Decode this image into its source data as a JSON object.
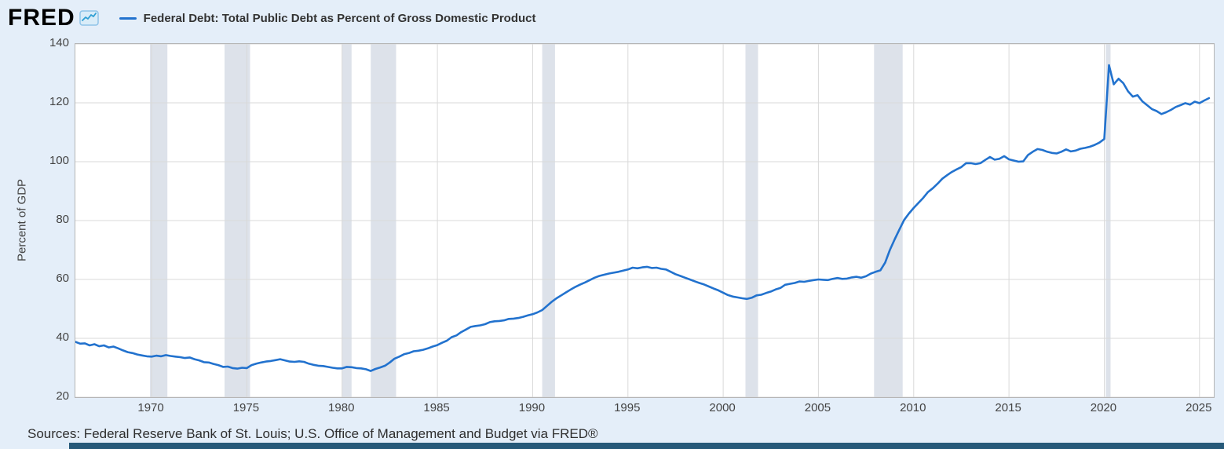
{
  "header": {
    "logo": "FRED",
    "series_title": "Federal Debt: Total Public Debt as Percent of Gross Domestic Product"
  },
  "footer": {
    "sources": "Sources: Federal Reserve Bank of St. Louis; U.S. Office of Management and Budget via FRED®"
  },
  "colors": {
    "line": "#2272ce",
    "background": "#e4eef9",
    "plot_background": "#ffffff",
    "gridline": "#d9d9d9",
    "recession_band": "#dde2ea",
    "bottom_bar": "#265979",
    "logo_icon_fill": "#d9ecf8",
    "logo_icon_stroke": "#8fc3e8",
    "logo_icon_line": "#2e9fd4"
  },
  "chart_data": {
    "type": "line",
    "title": "Federal Debt: Total Public Debt as Percent of Gross Domestic Product",
    "ylabel": "Percent of GDP",
    "xlabel": "",
    "legend_position": "top",
    "grid": true,
    "xlim": [
      1966,
      2025.75
    ],
    "ylim": [
      20,
      140
    ],
    "y_ticks": [
      20,
      40,
      60,
      80,
      100,
      120,
      140
    ],
    "x_ticks": [
      1970,
      1975,
      1980,
      1985,
      1990,
      1995,
      2000,
      2005,
      2010,
      2015,
      2020,
      2025
    ],
    "recessions": [
      [
        1969.92,
        1970.83
      ],
      [
        1973.83,
        1975.17
      ],
      [
        1980.0,
        1980.5
      ],
      [
        1981.5,
        1982.83
      ],
      [
        1990.5,
        1991.17
      ],
      [
        2001.17,
        2001.83
      ],
      [
        2007.92,
        2009.42
      ],
      [
        2020.08,
        2020.33
      ]
    ],
    "x_start": 1966.0,
    "points_per_year": 4,
    "values": [
      38.8,
      38.2,
      38.3,
      37.6,
      38.0,
      37.3,
      37.6,
      36.9,
      37.2,
      36.6,
      35.9,
      35.3,
      35.0,
      34.5,
      34.2,
      33.9,
      33.8,
      34.1,
      33.9,
      34.3,
      34.0,
      33.8,
      33.6,
      33.3,
      33.5,
      32.9,
      32.5,
      31.9,
      31.8,
      31.3,
      30.9,
      30.3,
      30.4,
      29.9,
      29.7,
      30.0,
      29.9,
      30.9,
      31.4,
      31.8,
      32.1,
      32.3,
      32.6,
      32.9,
      32.5,
      32.1,
      32.0,
      32.2,
      32.0,
      31.4,
      31.0,
      30.7,
      30.6,
      30.3,
      30.0,
      29.8,
      29.8,
      30.3,
      30.2,
      29.9,
      29.8,
      29.5,
      28.9,
      29.6,
      30.1,
      30.7,
      31.8,
      33.1,
      33.8,
      34.6,
      35.0,
      35.6,
      35.8,
      36.1,
      36.6,
      37.2,
      37.7,
      38.5,
      39.2,
      40.4,
      41.0,
      42.1,
      43.0,
      43.9,
      44.2,
      44.4,
      44.8,
      45.5,
      45.8,
      45.9,
      46.1,
      46.6,
      46.7,
      46.9,
      47.3,
      47.8,
      48.2,
      48.8,
      49.6,
      51.0,
      52.4,
      53.6,
      54.6,
      55.6,
      56.6,
      57.5,
      58.3,
      59.0,
      59.8,
      60.6,
      61.2,
      61.6,
      62.0,
      62.3,
      62.6,
      63.0,
      63.4,
      64.0,
      63.8,
      64.1,
      64.3,
      63.9,
      64.0,
      63.6,
      63.4,
      62.6,
      61.8,
      61.2,
      60.6,
      60.0,
      59.4,
      58.8,
      58.3,
      57.6,
      56.9,
      56.3,
      55.5,
      54.7,
      54.2,
      53.9,
      53.6,
      53.4,
      53.8,
      54.6,
      54.8,
      55.4,
      55.9,
      56.6,
      57.1,
      58.2,
      58.5,
      58.8,
      59.3,
      59.2,
      59.5,
      59.8,
      60.0,
      59.9,
      59.8,
      60.2,
      60.5,
      60.2,
      60.3,
      60.7,
      60.9,
      60.6,
      61.1,
      62.0,
      62.6,
      63.1,
      65.7,
      70.0,
      73.6,
      77.0,
      80.2,
      82.4,
      84.3,
      86.0,
      87.7,
      89.7,
      91.0,
      92.5,
      94.2,
      95.4,
      96.5,
      97.4,
      98.2,
      99.5,
      99.5,
      99.2,
      99.5,
      100.6,
      101.6,
      100.7,
      101.0,
      101.9,
      100.8,
      100.4,
      100.0,
      100.1,
      102.3,
      103.4,
      104.3,
      104.0,
      103.4,
      103.0,
      102.8,
      103.4,
      104.2,
      103.5,
      103.8,
      104.4,
      104.7,
      105.1,
      105.7,
      106.5,
      107.7,
      132.8,
      126.3,
      128.2,
      126.7,
      123.9,
      122.1,
      122.6,
      120.5,
      119.2,
      117.9,
      117.2,
      116.2,
      116.8,
      117.6,
      118.6,
      119.2,
      119.9,
      119.4,
      120.4,
      119.9,
      120.8,
      121.6
    ]
  }
}
